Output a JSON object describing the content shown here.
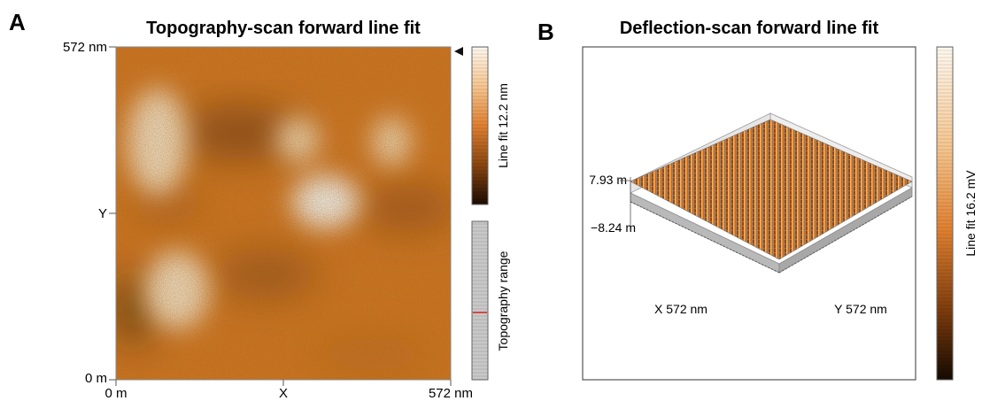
{
  "panel_a": {
    "letter": "A",
    "title": "Topography-scan forward line fit",
    "y_top_label": "572 nm",
    "y_mid_label": "Y",
    "y_bottom_label": "0 m",
    "x_left_label": "0 m",
    "x_mid_label": "X",
    "x_right_label": "572 nm",
    "colorbar_label": "Line fit 12.2 nm",
    "range_label": "Topography range"
  },
  "panel_b": {
    "letter": "B",
    "title": "Deflection-scan forward line fit",
    "z_top_label": "7.93 m",
    "z_bottom_label": "−8.24 m",
    "x_axis_label": "X 572 nm",
    "y_axis_label": "Y 572 nm",
    "colorbar_label": "Line fit 16.2 mV"
  },
  "colors": {
    "orange_mid": "#d9771e",
    "orange_light": "#f7dcb8",
    "dark_brown": "#3a1f08",
    "range_bar": "#c8c8c8",
    "range_marker": "#e02020"
  },
  "chart_data": [
    {
      "type": "heatmap",
      "title": "Topography-scan forward line fit",
      "xlabel": "X",
      "ylabel": "Y",
      "xlim": [
        0,
        572
      ],
      "ylim": [
        0,
        572
      ],
      "units": "nm",
      "colorbar": {
        "label": "Line fit 12.2 nm",
        "range": [
          0,
          12.2
        ]
      }
    },
    {
      "type": "heatmap",
      "title": "Deflection-scan forward line fit",
      "xlabel": "X 572 nm",
      "ylabel": "Y 572 nm",
      "zlim": [
        -8.24,
        7.93
      ],
      "colorbar": {
        "label": "Line fit 16.2 mV",
        "range": [
          0,
          16.2
        ]
      }
    }
  ]
}
